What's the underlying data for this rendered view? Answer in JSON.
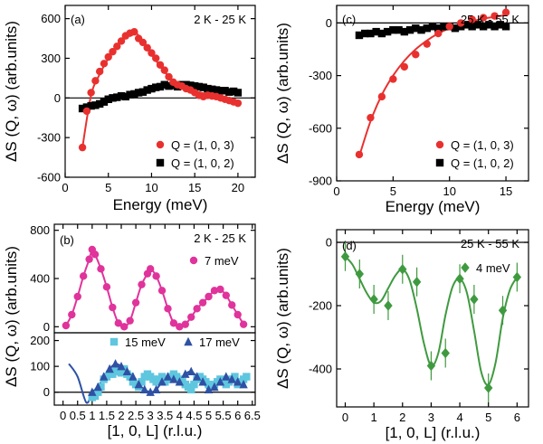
{
  "colors": {
    "red": "#e8312f",
    "black": "#000000",
    "magenta": "#e0339b",
    "cyan": "#5fc6df",
    "blue": "#2f51a4",
    "green": "#3f9a3f"
  },
  "chart_data": [
    {
      "id": "a",
      "type": "line+scatter",
      "panel_label": "(a)",
      "annotation": "2 K - 25 K",
      "xlabel": "Energy (meV)",
      "ylabel": "ΔS (Q, ω) (arb.units)",
      "xlim": [
        0,
        22
      ],
      "ylim": [
        -600,
        700
      ],
      "xticks": [
        0,
        5,
        10,
        15,
        20
      ],
      "yticks": [
        -600,
        -300,
        0,
        300,
        600
      ],
      "series": [
        {
          "name": "Q = (1, 0, 3)",
          "color": "red",
          "marker": "circle",
          "x": [
            2,
            2.5,
            3,
            3.5,
            4,
            4.5,
            5,
            5.5,
            6,
            6.5,
            7,
            7.5,
            8,
            8.5,
            9,
            9.5,
            10,
            10.5,
            11,
            11.5,
            12,
            12.5,
            13,
            13.5,
            14,
            14.5,
            15,
            15.5,
            16,
            16.5,
            17,
            17.5,
            18,
            18.5,
            19,
            19.5,
            20
          ],
          "y": [
            -375,
            -100,
            40,
            130,
            200,
            260,
            310,
            350,
            390,
            430,
            470,
            490,
            500,
            450,
            420,
            380,
            340,
            300,
            250,
            210,
            160,
            120,
            100,
            90,
            70,
            60,
            40,
            20,
            10,
            20,
            15,
            10,
            0,
            -10,
            -20,
            -30,
            -40
          ]
        },
        {
          "name": "Q = (1, 0, 2)",
          "color": "black",
          "marker": "square",
          "x": [
            2,
            2.5,
            3,
            3.5,
            4,
            4.5,
            5,
            5.5,
            6,
            6.5,
            7,
            7.5,
            8,
            8.5,
            9,
            9.5,
            10,
            10.5,
            11,
            11.5,
            12,
            12.5,
            13,
            13.5,
            14,
            14.5,
            15,
            15.5,
            16,
            16.5,
            17,
            17.5,
            18,
            18.5,
            19,
            19.5,
            20
          ],
          "y": [
            -80,
            -70,
            -60,
            -55,
            -45,
            -30,
            -10,
            0,
            5,
            15,
            10,
            25,
            30,
            40,
            45,
            60,
            70,
            80,
            85,
            100,
            90,
            95,
            85,
            100,
            100,
            95,
            90,
            85,
            80,
            70,
            65,
            60,
            55,
            55,
            45,
            50,
            40
          ]
        }
      ],
      "fit": {
        "red_x": [
          2,
          3,
          4,
          5,
          6,
          7,
          8,
          9,
          10,
          11,
          12,
          13,
          14,
          15,
          16,
          17,
          18,
          19,
          20
        ],
        "red_y": [
          -375,
          20,
          180,
          300,
          400,
          470,
          500,
          430,
          330,
          240,
          160,
          110,
          80,
          55,
          35,
          20,
          5,
          -10,
          -25
        ]
      }
    },
    {
      "id": "b",
      "type": "line+scatter",
      "panel_label": "(b)",
      "annotation": "2 K - 25 K",
      "xlabel": "[1, 0, L] (r.l.u.)",
      "ylabel": "ΔS (Q, ω) (arb.units)",
      "xlim": [
        -0.3,
        6.6
      ],
      "xticks": [
        0,
        0.5,
        1,
        1.5,
        2,
        2.5,
        3,
        3.5,
        4,
        4.5,
        5,
        5.5,
        6,
        6.5
      ],
      "xticklabels": [
        "0",
        "0.5",
        "1",
        "1.5",
        "2",
        "2.5",
        "3",
        "3.5",
        "4",
        "4.5",
        "5",
        "5.5",
        "6",
        "6.5"
      ],
      "top": {
        "ylim": [
          -50,
          850
        ],
        "yticks": [
          0,
          400,
          800
        ],
        "series": [
          {
            "name": "7 meV",
            "color": "magenta",
            "marker": "circle",
            "x": [
              0.1,
              0.3,
              0.5,
              0.7,
              0.9,
              1.0,
              1.1,
              1.3,
              1.5,
              1.7,
              1.9,
              2.1,
              2.3,
              2.5,
              2.7,
              2.9,
              3.0,
              3.2,
              3.4,
              3.6,
              3.8,
              4.0,
              4.2,
              4.4,
              4.6,
              4.8,
              5.0,
              5.2,
              5.4,
              5.6,
              5.8,
              6.0,
              6.2
            ],
            "y": [
              10,
              100,
              250,
              420,
              560,
              640,
              600,
              480,
              330,
              160,
              30,
              0,
              50,
              200,
              350,
              440,
              480,
              420,
              300,
              150,
              30,
              0,
              20,
              80,
              150,
              200,
              250,
              300,
              310,
              260,
              180,
              100,
              20
            ]
          }
        ]
      },
      "bottom": {
        "ylim": [
          -50,
          230
        ],
        "yticks": [
          0,
          100,
          200
        ],
        "series": [
          {
            "name": "15 meV",
            "color": "cyan",
            "marker": "square",
            "x": [
              1.0,
              1.1,
              1.2,
              1.3,
              1.4,
              1.5,
              1.6,
              1.7,
              1.8,
              1.9,
              2.0,
              2.1,
              2.2,
              2.3,
              2.4,
              2.5,
              2.6,
              2.7,
              2.8,
              2.9,
              3.0,
              3.1,
              3.2,
              3.3,
              3.4,
              3.5,
              3.6,
              3.7,
              3.8,
              3.9,
              4.0,
              4.1,
              4.2,
              4.3,
              4.4,
              4.5,
              4.6,
              4.7,
              4.8,
              4.9,
              5.0,
              5.1,
              5.2,
              5.3,
              5.4,
              5.5,
              5.6,
              5.7,
              5.8,
              5.9,
              6.0,
              6.1,
              6.2,
              6.3
            ],
            "y": [
              -20,
              -15,
              0,
              20,
              50,
              60,
              70,
              70,
              80,
              80,
              75,
              90,
              70,
              60,
              40,
              30,
              20,
              40,
              60,
              70,
              60,
              50,
              40,
              50,
              60,
              40,
              50,
              60,
              70,
              60,
              50,
              40,
              30,
              20,
              10,
              30,
              50,
              60,
              50,
              40,
              30,
              20,
              30,
              40,
              50,
              40,
              30,
              40,
              50,
              60,
              30,
              40,
              50,
              60
            ]
          },
          {
            "name": "17 meV",
            "color": "blue",
            "marker": "triangle",
            "x": [
              1.0,
              1.2,
              1.4,
              1.6,
              1.8,
              2.0,
              2.2,
              2.4,
              2.6,
              2.8,
              3.0,
              3.2,
              3.4,
              3.6,
              3.8,
              4.0,
              4.2,
              4.4,
              4.6,
              4.8,
              5.0,
              5.2,
              5.4,
              5.6,
              5.8,
              6.0,
              6.2
            ],
            "y": [
              0,
              20,
              60,
              90,
              110,
              100,
              80,
              60,
              30,
              10,
              0,
              10,
              40,
              60,
              50,
              40,
              70,
              80,
              60,
              40,
              10,
              20,
              40,
              60,
              50,
              40,
              30
            ]
          }
        ]
      },
      "legend_labels": [
        "7 meV",
        "15 meV",
        "17 meV"
      ]
    },
    {
      "id": "c",
      "type": "line+scatter",
      "panel_label": "(c)",
      "annotation": "25 K - 55 K",
      "xlabel": "Energy (meV)",
      "ylabel": "ΔS (Q, ω) (arb.units)",
      "xlim": [
        0,
        17
      ],
      "ylim": [
        -900,
        100
      ],
      "xticks": [
        0,
        5,
        10,
        15
      ],
      "yticks": [
        -900,
        -600,
        -300,
        0
      ],
      "series": [
        {
          "name": "Q = (1, 0, 3)",
          "color": "red",
          "marker": "circle",
          "x": [
            2,
            3,
            4,
            5,
            6,
            7,
            8,
            9,
            10,
            11,
            12,
            13,
            14,
            15
          ],
          "y": [
            -750,
            -540,
            -420,
            -320,
            -250,
            -180,
            -120,
            -60,
            -20,
            0,
            20,
            30,
            40,
            60
          ]
        },
        {
          "name": "Q = (1, 0, 2)",
          "color": "black",
          "marker": "square",
          "x": [
            2,
            2.5,
            3,
            3.5,
            4,
            4.5,
            5,
            5.5,
            6,
            6.5,
            7,
            7.5,
            8,
            8.5,
            9,
            9.5,
            10,
            10.5,
            11,
            11.5,
            12,
            12.5,
            13,
            13.5,
            14,
            14.5,
            15
          ],
          "y": [
            -70,
            -60,
            -60,
            -50,
            -60,
            -50,
            -40,
            -40,
            -50,
            -40,
            -30,
            -40,
            -30,
            -20,
            -30,
            -20,
            -20,
            -30,
            -20,
            -10,
            -20,
            -10,
            -20,
            -10,
            -20,
            -10,
            -20
          ]
        }
      ],
      "fit": {
        "red_x": [
          2,
          3,
          4,
          5,
          6,
          7,
          8,
          9,
          10,
          11,
          12,
          13,
          14,
          15
        ],
        "red_y": [
          -760,
          -560,
          -410,
          -300,
          -215,
          -150,
          -100,
          -60,
          -30,
          -5,
          10,
          25,
          35,
          45
        ]
      }
    },
    {
      "id": "d",
      "type": "line+scatter",
      "panel_label": "(d)",
      "annotation": "25 K - 55 K",
      "xlabel": "[1, 0, L] (r.l.u.)",
      "ylabel": "ΔS (Q, ω) (arb.units)",
      "xlim": [
        -0.3,
        6.4
      ],
      "ylim": [
        -520,
        40
      ],
      "xticks": [
        0,
        1,
        2,
        3,
        4,
        5,
        6
      ],
      "yticks": [
        -400,
        -200,
        0
      ],
      "series": [
        {
          "name": "4 meV",
          "color": "green",
          "marker": "diamond",
          "x": [
            0,
            0.5,
            1,
            1.5,
            2,
            2.5,
            3,
            3.5,
            4,
            4.5,
            5,
            5.5,
            6
          ],
          "y": [
            -45,
            -100,
            -180,
            -200,
            -85,
            -125,
            -390,
            -350,
            -115,
            -180,
            -460,
            -215,
            -110
          ]
        }
      ],
      "fit": {
        "x": [
          0,
          0.25,
          0.5,
          0.75,
          1,
          1.25,
          1.5,
          1.75,
          2,
          2.25,
          2.5,
          2.75,
          3,
          3.25,
          3.5,
          3.75,
          4,
          4.25,
          4.5,
          4.75,
          5,
          5.25,
          5.5,
          5.75,
          6
        ],
        "y": [
          -45,
          -70,
          -115,
          -160,
          -190,
          -185,
          -145,
          -105,
          -85,
          -120,
          -210,
          -320,
          -390,
          -350,
          -230,
          -140,
          -115,
          -160,
          -280,
          -410,
          -450,
          -380,
          -240,
          -150,
          -110
        ]
      }
    }
  ]
}
